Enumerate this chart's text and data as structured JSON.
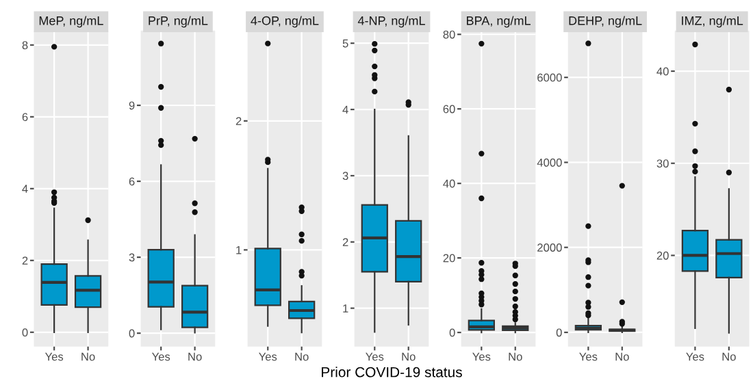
{
  "chart_data": [
    {
      "type": "box",
      "title": "MeP, ng/mL",
      "categories": [
        "Yes",
        "No"
      ],
      "color": "#0099cc",
      "grid": true,
      "ylim": [
        -0.4,
        8.4
      ],
      "yticks": [
        0,
        2,
        4,
        6,
        8
      ],
      "boxes": [
        {
          "low": 0,
          "q1": 0.76,
          "median": 1.39,
          "q3": 1.9,
          "high": 3.45,
          "outliers": [
            3.6,
            3.65,
            3.75,
            3.9,
            7.95
          ]
        },
        {
          "low": 0,
          "q1": 0.7,
          "median": 1.17,
          "q3": 1.57,
          "high": 2.56,
          "outliers": [
            3.12
          ]
        }
      ]
    },
    {
      "type": "box",
      "title": "PrP, ng/mL",
      "categories": [
        "Yes",
        "No"
      ],
      "color": "#0099cc",
      "grid": true,
      "ylim": [
        -0.53,
        11.95
      ],
      "yticks": [
        0,
        3,
        6,
        9
      ],
      "boxes": [
        {
          "low": 0.15,
          "q1": 1.04,
          "median": 2.02,
          "q3": 3.3,
          "high": 6.64,
          "outliers": [
            7.43,
            7.6,
            8.9,
            9.73,
            11.44
          ]
        },
        {
          "low": 0.02,
          "q1": 0.23,
          "median": 0.83,
          "q3": 1.88,
          "high": 3.88,
          "outliers": [
            4.78,
            5.13,
            7.68
          ]
        }
      ]
    },
    {
      "type": "box",
      "title": "4-OP, ng/mL",
      "categories": [
        "Yes",
        "No"
      ],
      "color": "#0099cc",
      "grid": true,
      "ylim": [
        0.25,
        2.7
      ],
      "yticks": [
        1,
        2
      ],
      "boxes": [
        {
          "low": 0.41,
          "q1": 0.57,
          "median": 0.69,
          "q3": 1.01,
          "high": 1.63,
          "outliers": [
            1.68,
            1.7,
            2.6
          ]
        },
        {
          "low": 0.36,
          "q1": 0.47,
          "median": 0.53,
          "q3": 0.6,
          "high": 0.72,
          "outliers": [
            0.8,
            0.83,
            1.07,
            1.12,
            1.3,
            1.33
          ]
        }
      ]
    },
    {
      "type": "box",
      "title": "4-NP, ng/mL",
      "xlabel": "Prior COVID-19 status",
      "categories": [
        "Yes",
        "No"
      ],
      "color": "#0099cc",
      "grid": true,
      "ylim": [
        0.42,
        5.19
      ],
      "yticks": [
        1,
        2,
        3,
        4,
        5
      ],
      "boxes": [
        {
          "low": 0.64,
          "q1": 1.55,
          "median": 2.06,
          "q3": 2.56,
          "high": 4.0,
          "outliers": [
            4.27,
            4.47,
            4.52,
            4.65,
            4.89,
            4.99
          ]
        },
        {
          "low": 0.75,
          "q1": 1.4,
          "median": 1.78,
          "q3": 2.32,
          "high": 3.6,
          "outliers": [
            4.07,
            4.11
          ]
        }
      ]
    },
    {
      "type": "box",
      "title": "BPA, ng/mL",
      "categories": [
        "Yes",
        "No"
      ],
      "color": "#0099cc",
      "grid": true,
      "ylim": [
        -3.8,
        81
      ],
      "yticks": [
        0,
        20,
        40,
        60,
        80
      ],
      "boxes": [
        {
          "low": 0,
          "q1": 0.7,
          "median": 1.5,
          "q3": 3.2,
          "high": 6.3,
          "outliers": [
            7.5,
            8.5,
            9.5,
            10.5,
            14.3,
            15.5,
            16.5,
            18.7,
            36,
            48,
            77.5
          ]
        },
        {
          "low": 0,
          "q1": 0.6,
          "median": 1.2,
          "q3": 1.7,
          "high": 2.5,
          "outliers": [
            3.5,
            4.5,
            5.5,
            7,
            9,
            11,
            13,
            15.3,
            17.8,
            18.5
          ]
        }
      ]
    },
    {
      "type": "box",
      "title": "DEHP, ng/mL",
      "categories": [
        "Yes",
        "No"
      ],
      "color": "#0099cc",
      "grid": true,
      "ylim": [
        -335,
        7100
      ],
      "yticks": [
        0,
        2000,
        4000,
        6000
      ],
      "boxes": [
        {
          "low": 0,
          "q1": 60,
          "median": 100,
          "q3": 160,
          "high": 350,
          "outliers": [
            400,
            450,
            600,
            700,
            1100,
            1300,
            1650,
            1700,
            2500,
            6800
          ]
        },
        {
          "low": 0,
          "q1": 30,
          "median": 50,
          "q3": 70,
          "high": 150,
          "outliers": [
            200,
            250,
            710,
            3450
          ]
        }
      ]
    },
    {
      "type": "box",
      "title": "IMZ, ng/mL",
      "categories": [
        "Yes",
        "No"
      ],
      "color": "#0099cc",
      "grid": true,
      "ylim": [
        10.1,
        44.4
      ],
      "yticks": [
        20,
        30,
        40
      ],
      "boxes": [
        {
          "low": 12.1,
          "q1": 18.3,
          "median": 20.0,
          "q3": 22.7,
          "high": 28.5,
          "outliers": [
            29.1,
            29.7,
            31.3,
            34.3,
            42.9
          ]
        },
        {
          "low": 11.6,
          "q1": 17.6,
          "median": 20.2,
          "q3": 21.7,
          "high": 27.2,
          "outliers": [
            29.0,
            38.0
          ]
        }
      ]
    }
  ]
}
